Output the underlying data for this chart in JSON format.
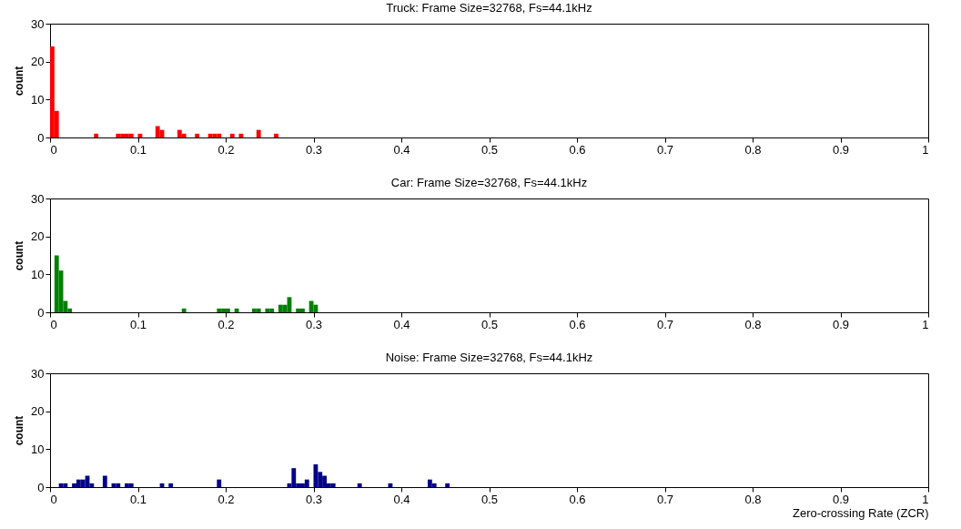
{
  "chart_data": [
    {
      "type": "histogram",
      "title": "Truck: Frame Size=32768, Fs=44.1kHz",
      "ylabel": "count",
      "color": "#ff0000",
      "grid": false,
      "xlim": [
        0,
        1
      ],
      "xticks": [
        0,
        0.1,
        0.2,
        0.3,
        0.4,
        0.5,
        0.6,
        0.7,
        0.8,
        0.9,
        1
      ],
      "ylim": [
        0,
        30
      ],
      "yticks": [
        0,
        10,
        20,
        30
      ],
      "bins": [
        0,
        0.005,
        0.01,
        0.015,
        0.02,
        0.025,
        0.03,
        0.035,
        0.04,
        0.045,
        0.05,
        0.055,
        0.06,
        0.065,
        0.07,
        0.075,
        0.08,
        0.085,
        0.09,
        0.095,
        0.1,
        0.105,
        0.11,
        0.115,
        0.12,
        0.125,
        0.13,
        0.135,
        0.14,
        0.145,
        0.15,
        0.155,
        0.16,
        0.165,
        0.17,
        0.175,
        0.18,
        0.185,
        0.19,
        0.195,
        0.2,
        0.205,
        0.21,
        0.215,
        0.22,
        0.225,
        0.23,
        0.235,
        0.24,
        0.245,
        0.25,
        0.255,
        0.26
      ],
      "values": [
        24,
        7,
        0,
        0,
        0,
        0,
        0,
        0,
        0,
        0,
        1,
        0,
        0,
        0,
        0,
        1,
        1,
        1,
        1,
        0,
        1,
        0,
        0,
        0,
        3,
        2,
        0,
        0,
        0,
        2,
        1,
        0,
        0,
        1,
        0,
        0,
        1,
        1,
        1,
        0,
        0,
        1,
        0,
        1,
        0,
        0,
        0,
        2,
        0,
        0,
        0,
        1
      ]
    },
    {
      "type": "histogram",
      "title": "Car: Frame Size=32768, Fs=44.1kHz",
      "ylabel": "count",
      "color": "#008000",
      "grid": false,
      "xlim": [
        0,
        1
      ],
      "xticks": [
        0,
        0.1,
        0.2,
        0.3,
        0.4,
        0.5,
        0.6,
        0.7,
        0.8,
        0.9,
        1
      ],
      "ylim": [
        0,
        30
      ],
      "yticks": [
        0,
        10,
        20,
        30
      ],
      "bins": [
        0,
        0.005,
        0.01,
        0.015,
        0.02,
        0.025,
        0.03,
        0.035,
        0.04,
        0.045,
        0.05,
        0.055,
        0.06,
        0.065,
        0.07,
        0.075,
        0.08,
        0.085,
        0.09,
        0.095,
        0.1,
        0.105,
        0.11,
        0.115,
        0.12,
        0.125,
        0.13,
        0.135,
        0.14,
        0.145,
        0.15,
        0.155,
        0.16,
        0.165,
        0.17,
        0.175,
        0.18,
        0.185,
        0.19,
        0.195,
        0.2,
        0.205,
        0.21,
        0.215,
        0.22,
        0.225,
        0.23,
        0.235,
        0.24,
        0.245,
        0.25,
        0.255,
        0.26,
        0.265,
        0.27,
        0.275,
        0.28,
        0.285,
        0.29,
        0.295,
        0.3,
        0.305
      ],
      "values": [
        0,
        15,
        11,
        3,
        1,
        0,
        0,
        0,
        0,
        0,
        0,
        0,
        0,
        0,
        0,
        0,
        0,
        0,
        0,
        0,
        0,
        0,
        0,
        0,
        0,
        0,
        0,
        0,
        0,
        0,
        1,
        0,
        0,
        0,
        0,
        0,
        0,
        0,
        1,
        1,
        1,
        0,
        1,
        0,
        0,
        0,
        1,
        1,
        0,
        1,
        1,
        0,
        2,
        2,
        4,
        0,
        1,
        1,
        0,
        3,
        2
      ]
    },
    {
      "type": "histogram",
      "title": "Noise: Frame Size=32768, Fs=44.1kHz",
      "ylabel": "count",
      "xlabel": "Zero-crossing Rate (ZCR)",
      "color": "#00008b",
      "grid": false,
      "xlim": [
        0,
        1
      ],
      "xticks": [
        0,
        0.1,
        0.2,
        0.3,
        0.4,
        0.5,
        0.6,
        0.7,
        0.8,
        0.9,
        1
      ],
      "ylim": [
        0,
        30
      ],
      "yticks": [
        0,
        10,
        20,
        30
      ],
      "bins": [
        0,
        0.005,
        0.01,
        0.015,
        0.02,
        0.025,
        0.03,
        0.035,
        0.04,
        0.045,
        0.05,
        0.055,
        0.06,
        0.065,
        0.07,
        0.075,
        0.08,
        0.085,
        0.09,
        0.095,
        0.1,
        0.105,
        0.11,
        0.115,
        0.12,
        0.125,
        0.13,
        0.135,
        0.14,
        0.145,
        0.15,
        0.155,
        0.16,
        0.165,
        0.17,
        0.175,
        0.18,
        0.185,
        0.19,
        0.195,
        0.2,
        0.205,
        0.21,
        0.215,
        0.22,
        0.225,
        0.23,
        0.235,
        0.24,
        0.245,
        0.25,
        0.255,
        0.26,
        0.265,
        0.27,
        0.275,
        0.28,
        0.285,
        0.29,
        0.295,
        0.3,
        0.305,
        0.31,
        0.315,
        0.32,
        0.325,
        0.33,
        0.335,
        0.34,
        0.345,
        0.35,
        0.355,
        0.36,
        0.365,
        0.37,
        0.375,
        0.38,
        0.385,
        0.39,
        0.395,
        0.4,
        0.405,
        0.41,
        0.415,
        0.42,
        0.425,
        0.43,
        0.435,
        0.44,
        0.445,
        0.45,
        0.455
      ],
      "values": [
        0,
        0,
        1,
        1,
        0,
        1,
        2,
        2,
        3,
        1,
        0,
        0,
        3,
        0,
        1,
        1,
        0,
        1,
        1,
        0,
        0,
        0,
        0,
        0,
        0,
        1,
        0,
        1,
        0,
        0,
        0,
        0,
        0,
        0,
        0,
        0,
        0,
        0,
        2,
        0,
        0,
        0,
        0,
        0,
        0,
        0,
        0,
        0,
        0,
        0,
        0,
        0,
        0,
        0,
        1,
        5,
        1,
        1,
        2,
        0,
        6,
        4,
        3,
        1,
        1,
        0,
        0,
        0,
        0,
        0,
        1,
        0,
        0,
        0,
        0,
        0,
        0,
        1,
        0,
        0,
        0,
        0,
        0,
        0,
        0,
        0,
        2,
        1,
        0,
        0,
        1
      ]
    }
  ]
}
